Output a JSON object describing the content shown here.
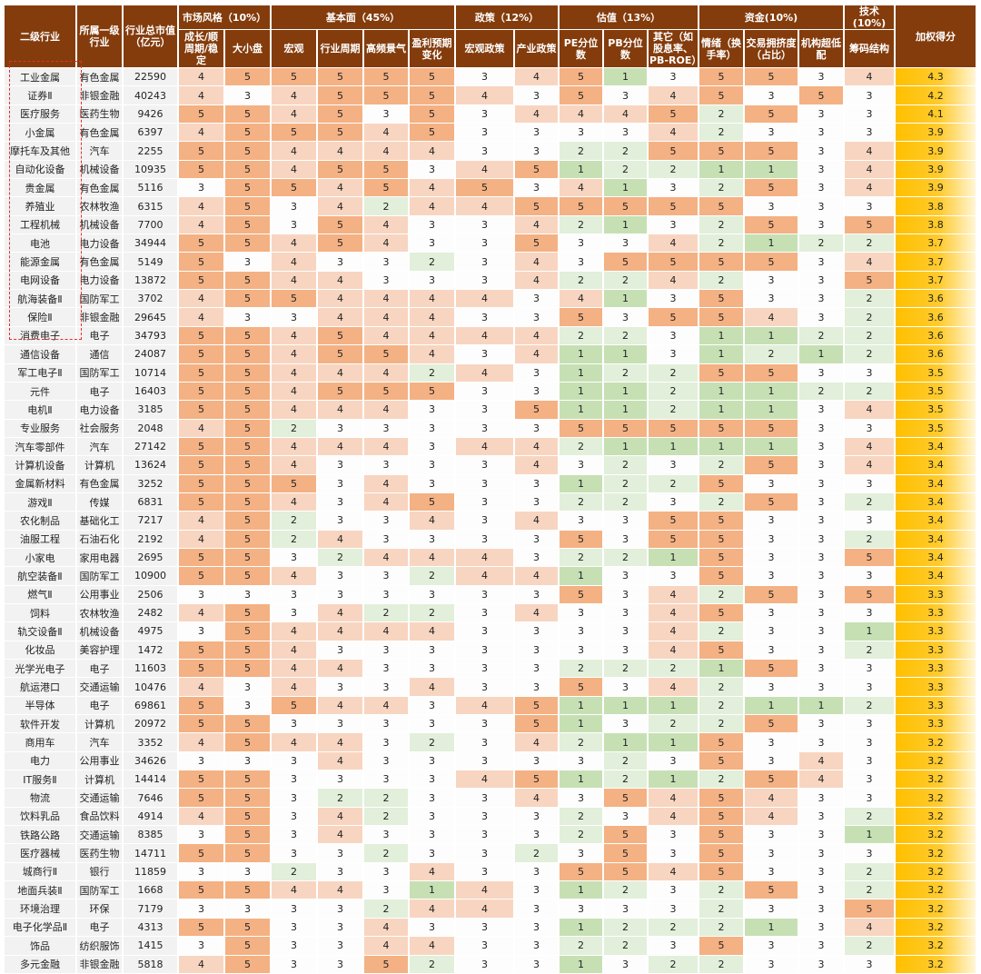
{
  "chart_data": {
    "type": "table",
    "group_headers": [
      {
        "label": "市场风格（10%）",
        "span": 2
      },
      {
        "label": "基本面（45%）",
        "span": 4
      },
      {
        "label": "政策（12%）",
        "span": 2
      },
      {
        "label": "估值（13%）",
        "span": 3
      },
      {
        "label": "资金(10%)",
        "span": 3
      },
      {
        "label": "技术(10%)",
        "span": 1
      }
    ],
    "fixed_headers": [
      "二级行业",
      "所属一级行业",
      "行业总市值（亿元）"
    ],
    "score_header": "加权得分",
    "columns": [
      "成长/顺周期/稳定",
      "大小盘",
      "宏观",
      "行业周期",
      "高频景气",
      "盈利预期变化",
      "宏观政策",
      "产业政策",
      "PE分位数",
      "PB分位数",
      "其它（如股息率、PB-ROE）",
      "情绪（换手率）",
      "交易拥挤度（占比）",
      "机构超低配",
      "筹码结构"
    ],
    "colors": {
      "5": "#f4b183",
      "4": "#f8d5c0",
      "3": "#fdfdfd",
      "2": "#e2efda",
      "1": "#c6e0b4",
      "header": "#843c0c",
      "score": "#ffc000",
      "highlight_box": "#e03030"
    },
    "highlighted_rows": 15,
    "rows": [
      [
        "工业金属",
        "有色金属",
        "22590",
        [
          4,
          5,
          5,
          5,
          5,
          5,
          3,
          4,
          5,
          1,
          3,
          5,
          5,
          3,
          4
        ],
        "4.3"
      ],
      [
        "证券Ⅱ",
        "非银金融",
        "40243",
        [
          4,
          3,
          4,
          5,
          5,
          5,
          4,
          3,
          5,
          3,
          4,
          5,
          3,
          5,
          3
        ],
        "4.2"
      ],
      [
        "医疗服务",
        "医药生物",
        "9426",
        [
          5,
          5,
          4,
          5,
          3,
          5,
          3,
          4,
          4,
          4,
          5,
          2,
          5,
          3,
          3
        ],
        "4.1"
      ],
      [
        "小金属",
        "有色金属",
        "6397",
        [
          4,
          5,
          5,
          5,
          4,
          5,
          3,
          3,
          3,
          3,
          4,
          2,
          3,
          3,
          3
        ],
        "3.9"
      ],
      [
        "摩托车及其他",
        "汽车",
        "2255",
        [
          5,
          5,
          4,
          4,
          4,
          4,
          3,
          3,
          2,
          2,
          5,
          5,
          5,
          3,
          4
        ],
        "3.9"
      ],
      [
        "自动化设备",
        "机械设备",
        "10935",
        [
          5,
          5,
          4,
          5,
          5,
          3,
          4,
          5,
          1,
          2,
          2,
          1,
          1,
          3,
          4
        ],
        "3.9"
      ],
      [
        "贵金属",
        "有色金属",
        "5116",
        [
          3,
          5,
          5,
          4,
          5,
          4,
          5,
          3,
          4,
          1,
          3,
          2,
          5,
          3,
          4
        ],
        "3.9"
      ],
      [
        "养殖业",
        "农林牧渔",
        "6315",
        [
          4,
          5,
          3,
          4,
          2,
          4,
          4,
          5,
          5,
          5,
          5,
          5,
          3,
          3,
          3
        ],
        "3.8"
      ],
      [
        "工程机械",
        "机械设备",
        "7700",
        [
          4,
          5,
          3,
          5,
          4,
          3,
          3,
          4,
          2,
          1,
          3,
          2,
          5,
          3,
          5
        ],
        "3.8"
      ],
      [
        "电池",
        "电力设备",
        "34944",
        [
          5,
          5,
          4,
          5,
          4,
          3,
          3,
          5,
          3,
          3,
          4,
          2,
          1,
          2,
          2
        ],
        "3.7"
      ],
      [
        "能源金属",
        "有色金属",
        "5149",
        [
          5,
          3,
          4,
          3,
          3,
          2,
          3,
          4,
          3,
          5,
          5,
          5,
          5,
          3,
          4
        ],
        "3.7"
      ],
      [
        "电网设备",
        "电力设备",
        "13872",
        [
          5,
          5,
          4,
          4,
          3,
          3,
          3,
          4,
          2,
          2,
          4,
          2,
          3,
          3,
          5
        ],
        "3.7"
      ],
      [
        "航海装备Ⅱ",
        "国防军工",
        "3702",
        [
          4,
          5,
          5,
          4,
          4,
          4,
          4,
          3,
          4,
          1,
          3,
          5,
          3,
          3,
          2
        ],
        "3.6"
      ],
      [
        "保险Ⅱ",
        "非银金融",
        "29645",
        [
          4,
          3,
          3,
          4,
          4,
          4,
          3,
          3,
          5,
          3,
          5,
          5,
          4,
          3,
          2
        ],
        "3.6"
      ],
      [
        "消费电子",
        "电子",
        "34793",
        [
          5,
          5,
          4,
          5,
          4,
          4,
          4,
          4,
          2,
          2,
          3,
          1,
          1,
          2,
          2
        ],
        "3.6"
      ],
      [
        "通信设备",
        "通信",
        "24087",
        [
          5,
          5,
          4,
          5,
          5,
          4,
          3,
          4,
          1,
          1,
          3,
          1,
          2,
          1,
          2
        ],
        "3.6"
      ],
      [
        "军工电子Ⅱ",
        "国防军工",
        "10714",
        [
          5,
          5,
          4,
          4,
          4,
          2,
          4,
          3,
          1,
          2,
          2,
          5,
          5,
          3,
          3
        ],
        "3.5"
      ],
      [
        "元件",
        "电子",
        "16403",
        [
          5,
          5,
          4,
          5,
          5,
          5,
          3,
          3,
          1,
          1,
          2,
          1,
          1,
          2,
          2
        ],
        "3.5"
      ],
      [
        "电机Ⅱ",
        "电力设备",
        "3185",
        [
          5,
          5,
          4,
          4,
          4,
          3,
          3,
          5,
          1,
          1,
          2,
          1,
          1,
          3,
          4
        ],
        "3.5"
      ],
      [
        "专业服务",
        "社会服务",
        "2048",
        [
          4,
          5,
          2,
          3,
          3,
          3,
          3,
          3,
          5,
          5,
          5,
          5,
          5,
          3,
          3
        ],
        "3.5"
      ],
      [
        "汽车零部件",
        "汽车",
        "27142",
        [
          5,
          5,
          4,
          4,
          4,
          3,
          4,
          4,
          2,
          1,
          1,
          1,
          1,
          3,
          4
        ],
        "3.4"
      ],
      [
        "计算机设备",
        "计算机",
        "13624",
        [
          5,
          5,
          4,
          3,
          3,
          3,
          3,
          4,
          3,
          2,
          3,
          2,
          5,
          3,
          4
        ],
        "3.4"
      ],
      [
        "金属新材料",
        "有色金属",
        "3252",
        [
          5,
          5,
          5,
          3,
          4,
          3,
          3,
          3,
          1,
          2,
          2,
          5,
          3,
          3,
          3
        ],
        "3.4"
      ],
      [
        "游戏Ⅱ",
        "传媒",
        "6831",
        [
          5,
          5,
          4,
          3,
          4,
          5,
          3,
          3,
          2,
          2,
          3,
          2,
          5,
          3,
          2
        ],
        "3.4"
      ],
      [
        "农化制品",
        "基础化工",
        "7217",
        [
          4,
          5,
          2,
          3,
          3,
          4,
          3,
          4,
          3,
          3,
          5,
          5,
          3,
          3,
          3
        ],
        "3.4"
      ],
      [
        "油服工程",
        "石油石化",
        "2192",
        [
          4,
          5,
          2,
          4,
          3,
          3,
          3,
          3,
          5,
          3,
          5,
          5,
          3,
          3,
          2
        ],
        "3.4"
      ],
      [
        "小家电",
        "家用电器",
        "2695",
        [
          5,
          5,
          3,
          2,
          4,
          4,
          4,
          3,
          2,
          2,
          1,
          5,
          3,
          3,
          5
        ],
        "3.4"
      ],
      [
        "航空装备Ⅱ",
        "国防军工",
        "10900",
        [
          5,
          5,
          4,
          3,
          3,
          2,
          4,
          4,
          1,
          3,
          3,
          5,
          3,
          3,
          3
        ],
        "3.4"
      ],
      [
        "燃气Ⅱ",
        "公用事业",
        "2506",
        [
          3,
          3,
          3,
          3,
          3,
          3,
          3,
          3,
          5,
          3,
          4,
          2,
          5,
          3,
          5
        ],
        "3.3"
      ],
      [
        "饲料",
        "农林牧渔",
        "2482",
        [
          4,
          5,
          3,
          4,
          2,
          2,
          3,
          4,
          3,
          3,
          4,
          5,
          3,
          3,
          3
        ],
        "3.3"
      ],
      [
        "轨交设备Ⅱ",
        "机械设备",
        "4975",
        [
          3,
          5,
          4,
          4,
          4,
          4,
          3,
          3,
          3,
          3,
          4,
          2,
          3,
          3,
          1
        ],
        "3.3"
      ],
      [
        "化妆品",
        "美容护理",
        "1472",
        [
          5,
          5,
          4,
          3,
          3,
          3,
          3,
          3,
          3,
          3,
          4,
          5,
          3,
          3,
          2
        ],
        "3.3"
      ],
      [
        "光学光电子",
        "电子",
        "11603",
        [
          5,
          5,
          4,
          4,
          3,
          3,
          3,
          3,
          2,
          2,
          2,
          1,
          5,
          3,
          3
        ],
        "3.3"
      ],
      [
        "航运港口",
        "交通运输",
        "10476",
        [
          4,
          3,
          4,
          3,
          3,
          4,
          3,
          3,
          5,
          3,
          4,
          2,
          3,
          3,
          3
        ],
        "3.3"
      ],
      [
        "半导体",
        "电子",
        "69861",
        [
          5,
          3,
          5,
          4,
          4,
          3,
          4,
          5,
          1,
          1,
          1,
          2,
          1,
          1,
          2
        ],
        "3.3"
      ],
      [
        "软件开发",
        "计算机",
        "20972",
        [
          5,
          5,
          3,
          3,
          3,
          3,
          3,
          5,
          1,
          3,
          2,
          2,
          5,
          3,
          3
        ],
        "3.3"
      ],
      [
        "商用车",
        "汽车",
        "3352",
        [
          4,
          5,
          4,
          4,
          3,
          2,
          3,
          4,
          2,
          1,
          1,
          5,
          3,
          3,
          3
        ],
        "3.2"
      ],
      [
        "电力",
        "公用事业",
        "34626",
        [
          3,
          3,
          3,
          4,
          3,
          3,
          3,
          3,
          3,
          2,
          3,
          5,
          3,
          4,
          3
        ],
        "3.2"
      ],
      [
        "IT服务Ⅱ",
        "计算机",
        "14414",
        [
          5,
          5,
          3,
          3,
          3,
          3,
          4,
          5,
          1,
          2,
          1,
          2,
          5,
          4,
          3
        ],
        "3.2"
      ],
      [
        "物流",
        "交通运输",
        "7646",
        [
          5,
          5,
          3,
          2,
          2,
          3,
          3,
          4,
          3,
          5,
          4,
          5,
          4,
          3,
          3
        ],
        "3.2"
      ],
      [
        "饮料乳品",
        "食品饮料",
        "4914",
        [
          4,
          5,
          3,
          4,
          2,
          3,
          3,
          3,
          2,
          3,
          4,
          5,
          4,
          3,
          2
        ],
        "3.2"
      ],
      [
        "铁路公路",
        "交通运输",
        "8385",
        [
          3,
          5,
          3,
          4,
          3,
          3,
          3,
          3,
          2,
          5,
          3,
          5,
          3,
          3,
          1
        ],
        "3.2"
      ],
      [
        "医疗器械",
        "医药生物",
        "14711",
        [
          5,
          5,
          3,
          3,
          2,
          3,
          3,
          2,
          3,
          5,
          3,
          5,
          3,
          3,
          3
        ],
        "3.2"
      ],
      [
        "城商行Ⅱ",
        "银行",
        "11859",
        [
          3,
          3,
          2,
          3,
          3,
          4,
          3,
          3,
          5,
          5,
          4,
          5,
          3,
          3,
          2
        ],
        "3.2"
      ],
      [
        "地面兵装Ⅱ",
        "国防军工",
        "1668",
        [
          5,
          5,
          4,
          4,
          3,
          1,
          4,
          3,
          1,
          2,
          3,
          2,
          5,
          3,
          2
        ],
        "3.2"
      ],
      [
        "环境治理",
        "环保",
        "7179",
        [
          3,
          3,
          3,
          3,
          2,
          4,
          4,
          3,
          3,
          3,
          3,
          2,
          3,
          3,
          5
        ],
        "3.2"
      ],
      [
        "电子化学品Ⅱ",
        "电子",
        "4313",
        [
          5,
          5,
          3,
          3,
          4,
          3,
          3,
          3,
          1,
          2,
          2,
          2,
          1,
          3,
          4
        ],
        "3.2"
      ],
      [
        "饰品",
        "纺织服饰",
        "1415",
        [
          3,
          5,
          3,
          3,
          4,
          4,
          3,
          3,
          2,
          2,
          3,
          5,
          3,
          3,
          2
        ],
        "3.2"
      ],
      [
        "多元金融",
        "非银金融",
        "5818",
        [
          4,
          5,
          3,
          3,
          5,
          2,
          3,
          3,
          1,
          3,
          2,
          2,
          3,
          3,
          3
        ],
        "3.2"
      ]
    ]
  }
}
